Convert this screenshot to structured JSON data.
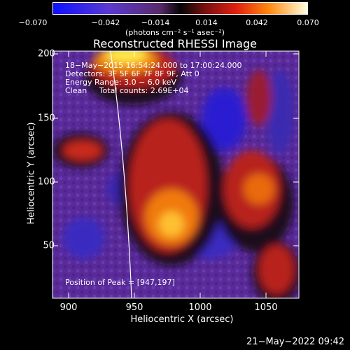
{
  "colorbar": {
    "ticks": [
      "−0.070",
      "−0.042",
      "−0.014",
      "0.014",
      "0.042",
      "0.070"
    ],
    "units": "(photons cm⁻² s⁻¹ asec⁻²)"
  },
  "title": "Reconstructed RHESSI Image",
  "info": {
    "line1": "18−May−2015 16:54:24.000 to 17:00:24.000",
    "line2": "Detectors: 3F 5F 6F 7F 8F 9F, Att 0",
    "line3": "Energy Range: 3.0 − 6.0 keV",
    "line4": "Clean     Total counts: 2.69E+04",
    "peak": "Position of Peak = [947,197]"
  },
  "axes": {
    "x_ticks": [
      "900",
      "950",
      "1000",
      "1050"
    ],
    "y_ticks": [
      "200",
      "150",
      "100",
      "50"
    ],
    "xlabel": "Heliocentric X (arcsec)",
    "ylabel": "Heliocentric Y (arcsec)"
  },
  "timestamp": "21−May−2022 09:42",
  "colors": {
    "low": "#2a1fe0",
    "mid_bg": "#5a2a9a",
    "dark": "#1a0a1a",
    "red": "#c8201a",
    "orange": "#f07a10",
    "yellow": "#ffe84a"
  }
}
